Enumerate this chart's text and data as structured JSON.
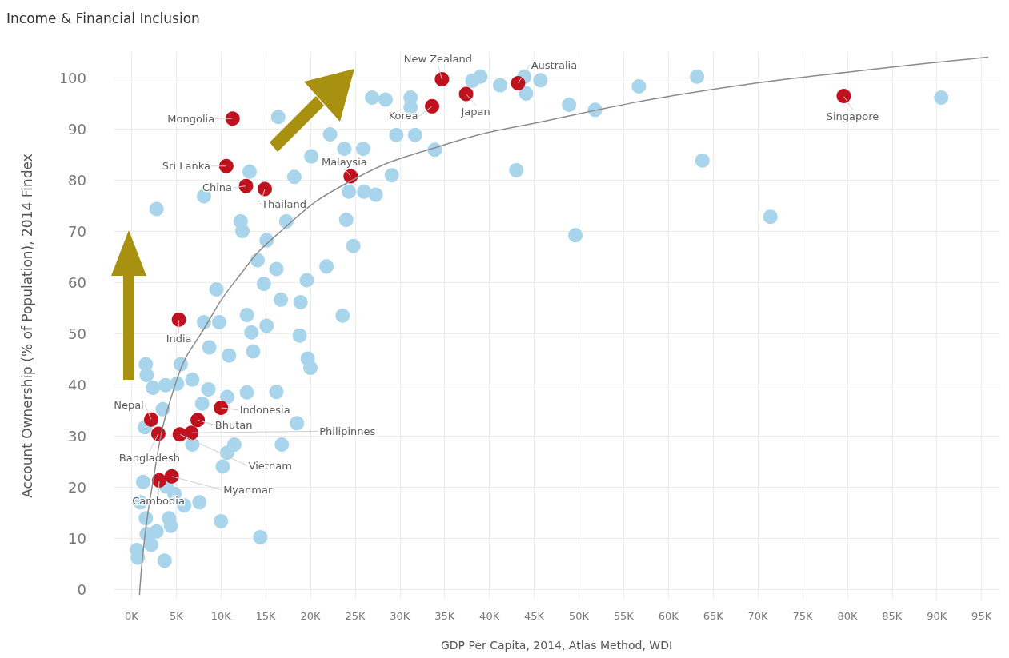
{
  "chart_data": {
    "type": "scatter",
    "title": "Income & Financial Inclusion",
    "xlabel": "GDP Per Capita, 2014, Atlas Method, WDI",
    "ylabel": "Account Ownership (% of Population), 2014 Findex",
    "xlim": [
      -2000,
      97000
    ],
    "ylim": [
      -2,
      105
    ],
    "xticks": [
      {
        "value": 0,
        "label": "0K"
      },
      {
        "value": 5000,
        "label": "5K"
      },
      {
        "value": 10000,
        "label": "10K"
      },
      {
        "value": 15000,
        "label": "15K"
      },
      {
        "value": 20000,
        "label": "20K"
      },
      {
        "value": 25000,
        "label": "25K"
      },
      {
        "value": 30000,
        "label": "30K"
      },
      {
        "value": 35000,
        "label": "35K"
      },
      {
        "value": 40000,
        "label": "40K"
      },
      {
        "value": 45000,
        "label": "45K"
      },
      {
        "value": 50000,
        "label": "50K"
      },
      {
        "value": 55000,
        "label": "55K"
      },
      {
        "value": 60000,
        "label": "60K"
      },
      {
        "value": 65000,
        "label": "65K"
      },
      {
        "value": 70000,
        "label": "70K"
      },
      {
        "value": 75000,
        "label": "75K"
      },
      {
        "value": 80000,
        "label": "80K"
      },
      {
        "value": 85000,
        "label": "85K"
      },
      {
        "value": 90000,
        "label": "90K"
      },
      {
        "value": 95000,
        "label": "95K"
      }
    ],
    "yticks": [
      0,
      10,
      20,
      30,
      40,
      50,
      60,
      70,
      80,
      90,
      100
    ],
    "grid": true,
    "marker": "circle",
    "series": [
      {
        "color": "#a9d5ec",
        "x": [
          2800,
          16400,
          13200,
          8100,
          18200,
          20100,
          22200,
          23800,
          25900,
          29100,
          29600,
          31700,
          33900,
          26900,
          28400,
          31200,
          31200,
          38100,
          39000,
          41200,
          43900,
          45700,
          44100,
          48900,
          51800,
          56700,
          63200,
          90500,
          43000,
          63800,
          71400,
          49600,
          24300,
          26000,
          27300,
          24000,
          24800,
          21800,
          23600,
          12200,
          12400,
          17300,
          15100,
          14100,
          16200,
          14800,
          16700,
          18900,
          19600,
          12900,
          13400,
          15100,
          18800,
          13600,
          19700,
          20000,
          16200,
          12900,
          10700,
          9500,
          8100,
          9800,
          8700,
          10900,
          1600,
          5500,
          2400,
          3800,
          5100,
          6800,
          8600,
          7900,
          3500,
          1500,
          6800,
          10700,
          11500,
          10200,
          16800,
          18500,
          1300,
          1000,
          3900,
          4800,
          7600,
          5900,
          1600,
          4200,
          4400,
          2800,
          2200,
          700,
          3700,
          10000,
          14400,
          600,
          1700,
          1700
        ],
        "values": [
          74.3,
          92.3,
          81.6,
          76.8,
          80.6,
          84.6,
          88.9,
          86.1,
          86.1,
          80.9,
          88.8,
          88.8,
          85.9,
          96.1,
          95.7,
          96.1,
          94.2,
          99.4,
          100.2,
          98.5,
          100.2,
          99.5,
          96.9,
          94.7,
          93.7,
          98.3,
          100.2,
          96.1,
          81.9,
          83.8,
          72.8,
          69.2,
          77.7,
          77.7,
          77.1,
          72.2,
          67.1,
          63.1,
          53.5,
          71.9,
          70.0,
          71.9,
          68.2,
          64.3,
          62.6,
          59.7,
          56.6,
          56.1,
          60.4,
          53.6,
          50.2,
          51.5,
          49.6,
          46.5,
          45.1,
          43.3,
          38.6,
          38.5,
          37.6,
          58.6,
          52.2,
          52.2,
          47.3,
          45.7,
          44.0,
          44.0,
          39.4,
          39.9,
          40.2,
          41.0,
          39.1,
          36.3,
          35.2,
          31.7,
          28.3,
          26.7,
          28.3,
          24.0,
          28.3,
          32.5,
          21.0,
          17.0,
          20.1,
          18.7,
          17.0,
          16.4,
          13.9,
          13.9,
          12.4,
          11.3,
          8.7,
          6.2,
          5.6,
          13.3,
          10.2,
          7.7,
          10.8,
          41.9
        ]
      },
      {
        "color": "#c0111f",
        "x": [
          11300,
          10600,
          12800,
          14900,
          24500,
          34700,
          33600,
          37400,
          43200,
          79600,
          5300,
          10000,
          2200,
          7400,
          3000,
          5400,
          6700,
          3100,
          4500
        ],
        "values": [
          92.0,
          82.7,
          78.8,
          78.2,
          80.7,
          99.7,
          94.4,
          96.8,
          98.9,
          96.4,
          52.7,
          35.5,
          33.2,
          33.1,
          30.4,
          30.3,
          30.6,
          21.3,
          22.1
        ]
      },
      {
        "type": "line",
        "color": "#8c8c8c",
        "marker": "none",
        "x": [
          900,
          2200,
          5000,
          8300,
          11800,
          16200,
          24000,
          34500,
          46700,
          64200,
          81700,
          95700
        ],
        "values": [
          -1,
          19,
          40.6,
          51.5,
          60.7,
          69.2,
          79.3,
          86.6,
          91.7,
          97.5,
          101.4,
          104
        ]
      }
    ],
    "annotations": [
      {
        "text": "Mongolia",
        "x": 11300,
        "y": 92.0
      },
      {
        "text": "Sri Lanka",
        "x": 10600,
        "y": 82.7
      },
      {
        "text": "China",
        "x": 12800,
        "y": 78.8
      },
      {
        "text": "Thailand",
        "x": 14900,
        "y": 78.2
      },
      {
        "text": "Malaysia",
        "x": 24500,
        "y": 80.7
      },
      {
        "text": "New Zealand",
        "x": 34700,
        "y": 99.7
      },
      {
        "text": "Korea",
        "x": 33600,
        "y": 94.4
      },
      {
        "text": "Japan",
        "x": 37400,
        "y": 96.8
      },
      {
        "text": "Australia",
        "x": 43200,
        "y": 98.9
      },
      {
        "text": "Singapore",
        "x": 79600,
        "y": 96.4
      },
      {
        "text": "India",
        "x": 5300,
        "y": 52.7
      },
      {
        "text": "Indonesia",
        "x": 10000,
        "y": 35.5
      },
      {
        "text": "Nepal",
        "x": 2200,
        "y": 33.2
      },
      {
        "text": "Bhutan",
        "x": 7400,
        "y": 33.1
      },
      {
        "text": "Bangladesh",
        "x": 3000,
        "y": 30.4
      },
      {
        "text": "Vietnam",
        "x": 5400,
        "y": 30.3
      },
      {
        "text": "Philipinnes",
        "x": 6700,
        "y": 30.6
      },
      {
        "text": "Cambodia",
        "x": 3100,
        "y": 21.3
      },
      {
        "text": "Myanmar",
        "x": 4500,
        "y": 22.1
      }
    ]
  }
}
